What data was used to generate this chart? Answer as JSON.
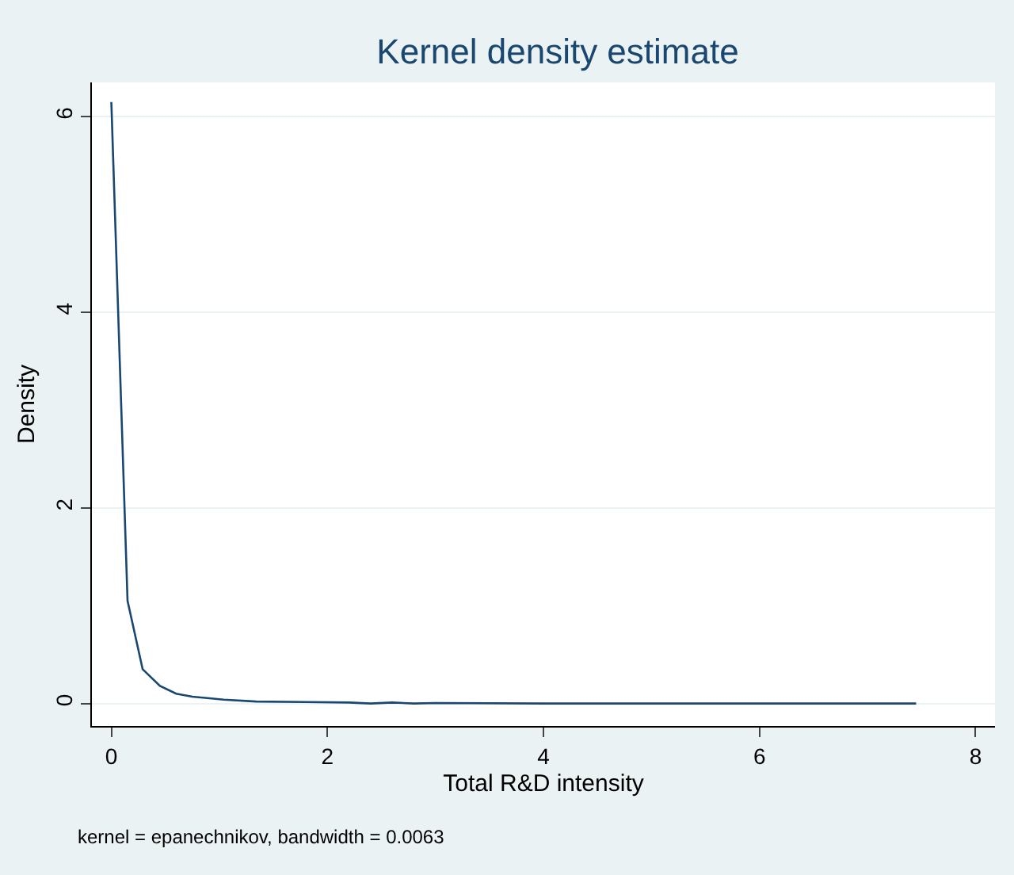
{
  "chart_data": {
    "type": "line",
    "title": "Kernel density estimate",
    "xlabel": "Total R&D intensity",
    "ylabel": "Density",
    "x": [
      0,
      0.15,
      0.29,
      0.45,
      0.6,
      0.75,
      1.04,
      1.34,
      1.8,
      2.2,
      2.4,
      2.6,
      2.8,
      3,
      4,
      5,
      6,
      7,
      7.45
    ],
    "series": [
      {
        "color": "#1a476f",
        "values": [
          6.15,
          1.05,
          0.35,
          0.18,
          0.1,
          0.07,
          0.04,
          0.02,
          0.015,
          0.01,
          0,
          0.01,
          0,
          0.005,
          0,
          0,
          0,
          0,
          0
        ]
      }
    ],
    "xlim": [
      -0.18,
      8.18
    ],
    "xticks": [
      0,
      2,
      4,
      6,
      8
    ],
    "ylim": [
      -0.23,
      6.35
    ],
    "yticks": [
      0,
      2,
      4,
      6
    ],
    "grid": "y",
    "annotations": [
      "kernel = epanechnikov, bandwidth = 0.0063"
    ]
  }
}
